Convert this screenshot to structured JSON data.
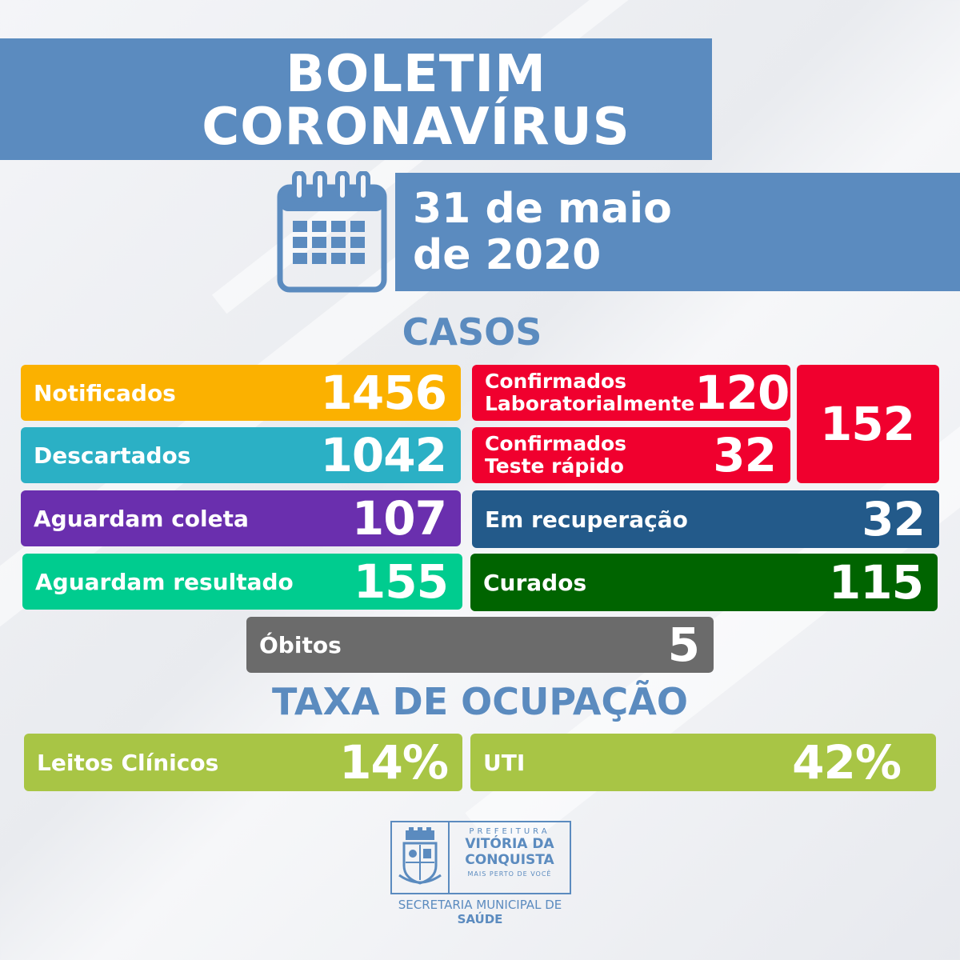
{
  "title": {
    "line1": "BOLETIM",
    "line2": "CORONAVÍRUS"
  },
  "date": {
    "line1": "31 de maio",
    "line2": "de 2020"
  },
  "icons": {
    "calendar": "calendar-icon",
    "seal": "city-seal-icon"
  },
  "sections": {
    "cases": "CASOS",
    "occupancy": "TAXA DE OCUPAÇÃO"
  },
  "cases": {
    "notificados": {
      "label": "Notificados",
      "value": "1456",
      "color": "#fbb100"
    },
    "descartados": {
      "label": "Descartados",
      "value": "1042",
      "color": "#2bb0c5"
    },
    "aguardam_coleta": {
      "label": "Aguardam coleta",
      "value": "107",
      "color": "#6a2fae"
    },
    "aguardam_resultado": {
      "label": "Aguardam resultado",
      "value": "155",
      "color": "#00cc8f"
    },
    "confirmados_lab": {
      "label_line1": "Confirmados",
      "label_line2": "Laboratorialmente",
      "value": "120",
      "color": "#f0002e"
    },
    "confirmados_rapido": {
      "label_line1": "Confirmados",
      "label_line2": "Teste rápido",
      "value": "32",
      "color": "#f0002e"
    },
    "confirmados_total": {
      "value": "152",
      "color": "#f0002e"
    },
    "em_recuperacao": {
      "label": "Em recuperação",
      "value": "32",
      "color": "#235a8a"
    },
    "curados": {
      "label": "Curados",
      "value": "115",
      "color": "#006400"
    },
    "obitos": {
      "label": "Óbitos",
      "value": "5",
      "color": "#6b6b6b"
    }
  },
  "occupancy": {
    "leitos": {
      "label": "Leitos Clínicos",
      "value": "14%",
      "color": "#a8c545"
    },
    "uti": {
      "label": "UTI",
      "value": "42%",
      "color": "#a8c545"
    }
  },
  "logo": {
    "prefeitura": "PREFEITURA",
    "city_line1": "VITÓRIA DA",
    "city_line2": "CONQUISTA",
    "slogan": "MAIS PERTO DE VOCÊ",
    "secretaria": "SECRETARIA MUNICIPAL DE",
    "saude": "SAÚDE"
  }
}
